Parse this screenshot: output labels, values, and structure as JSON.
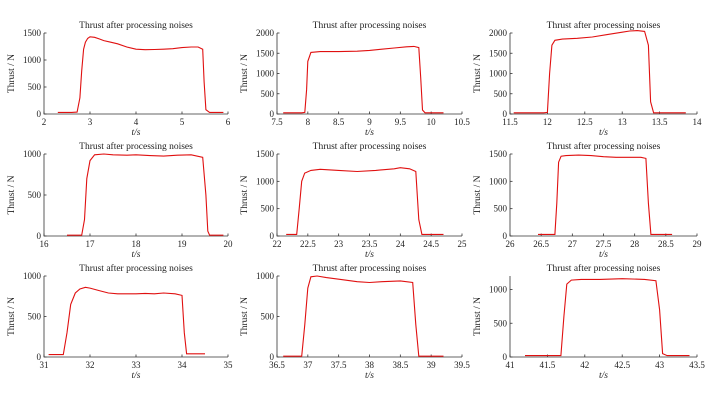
{
  "chart_data": [
    {
      "type": "line",
      "title": "Thrust after processing noises",
      "xlabel": "t/s",
      "ylabel": "Thrust / N",
      "xlim": [
        2,
        6
      ],
      "ylim": [
        0,
        1500
      ],
      "xticks": [
        2,
        3,
        4,
        5,
        6
      ],
      "xtick_labels": [
        "2",
        "3",
        "4",
        "5",
        "6"
      ],
      "yticks": [
        0,
        500,
        1000,
        1500
      ],
      "ytick_labels": [
        "0",
        "500",
        "1000",
        "1500"
      ],
      "grid": false,
      "color": "#e01010",
      "series": [
        {
          "x": [
            2.3,
            2.6,
            2.72,
            2.78,
            2.82,
            2.86,
            2.9,
            2.95,
            3.0,
            3.1,
            3.2,
            3.3,
            3.45,
            3.6,
            3.8,
            4.0,
            4.2,
            4.4,
            4.6,
            4.8,
            5.0,
            5.2,
            5.35,
            5.45,
            5.48,
            5.52,
            5.6,
            5.9
          ],
          "y": [
            30,
            30,
            35,
            300,
            800,
            1200,
            1330,
            1400,
            1430,
            1420,
            1390,
            1360,
            1330,
            1300,
            1240,
            1200,
            1190,
            1195,
            1200,
            1210,
            1230,
            1240,
            1240,
            1200,
            600,
            80,
            30,
            30
          ]
        }
      ]
    },
    {
      "type": "line",
      "title": "Thrust after processing noises",
      "xlabel": "t/s",
      "ylabel": "Thrust / N",
      "xlim": [
        7.5,
        10.5
      ],
      "ylim": [
        0,
        2000
      ],
      "xticks": [
        7.5,
        8,
        8.5,
        9,
        9.5,
        10,
        10.5
      ],
      "xtick_labels": [
        "7.5",
        "8",
        "8.5",
        "9",
        "9.5",
        "10",
        "10.5"
      ],
      "yticks": [
        0,
        500,
        1000,
        1500,
        2000
      ],
      "ytick_labels": [
        "0",
        "500",
        "1000",
        "1500",
        "2000"
      ],
      "grid": false,
      "color": "#e01010",
      "series": [
        {
          "x": [
            7.6,
            7.9,
            7.95,
            7.98,
            8.0,
            8.05,
            8.2,
            8.5,
            8.8,
            9.0,
            9.2,
            9.4,
            9.6,
            9.72,
            9.8,
            9.83,
            9.86,
            9.9,
            10.2
          ],
          "y": [
            30,
            30,
            40,
            600,
            1300,
            1520,
            1540,
            1540,
            1550,
            1570,
            1600,
            1630,
            1660,
            1670,
            1640,
            900,
            100,
            30,
            30
          ]
        }
      ]
    },
    {
      "type": "line",
      "title": "Thrust after processing noises",
      "xlabel": "t/s",
      "ylabel": "Thrust / N",
      "xlim": [
        11.5,
        14
      ],
      "ylim": [
        0,
        2000
      ],
      "xticks": [
        11.5,
        12,
        12.5,
        13,
        13.5,
        14
      ],
      "xtick_labels": [
        "11.5",
        "12",
        "12.5",
        "13",
        "13.5",
        "14"
      ],
      "yticks": [
        0,
        500,
        1000,
        1500,
        2000
      ],
      "ytick_labels": [
        "0",
        "500",
        "1000",
        "1500",
        "2000"
      ],
      "grid": false,
      "color": "#e01010",
      "series": [
        {
          "x": [
            11.55,
            11.95,
            12.0,
            12.03,
            12.06,
            12.1,
            12.2,
            12.4,
            12.6,
            12.8,
            13.0,
            13.1,
            13.2,
            13.3,
            13.35,
            13.38,
            13.42,
            13.85
          ],
          "y": [
            30,
            30,
            40,
            1000,
            1700,
            1820,
            1850,
            1870,
            1900,
            1960,
            2020,
            2050,
            2060,
            2040,
            1700,
            300,
            30,
            30
          ]
        }
      ]
    },
    {
      "type": "line",
      "title": "Thrust after processing noises",
      "xlabel": "t/s",
      "ylabel": "Thrust / N",
      "xlim": [
        16,
        20
      ],
      "ylim": [
        0,
        1000
      ],
      "xticks": [
        16,
        17,
        18,
        19,
        20
      ],
      "xtick_labels": [
        "16",
        "17",
        "18",
        "19",
        "20"
      ],
      "yticks": [
        0,
        500,
        1000
      ],
      "ytick_labels": [
        "0",
        "500",
        "1000"
      ],
      "grid": false,
      "color": "#e01010",
      "series": [
        {
          "x": [
            16.5,
            16.82,
            16.88,
            16.93,
            17.0,
            17.1,
            17.3,
            17.5,
            17.8,
            18.0,
            18.3,
            18.6,
            18.9,
            19.2,
            19.45,
            19.52,
            19.56,
            19.6,
            19.9
          ],
          "y": [
            10,
            10,
            200,
            700,
            920,
            990,
            1000,
            990,
            985,
            990,
            980,
            975,
            985,
            990,
            960,
            500,
            60,
            10,
            10
          ]
        }
      ]
    },
    {
      "type": "line",
      "title": "Thrust after processing noises",
      "xlabel": "t/s",
      "ylabel": "Thrust / N",
      "xlim": [
        22,
        25
      ],
      "ylim": [
        0,
        1500
      ],
      "xticks": [
        22,
        22.5,
        23,
        23.5,
        24,
        24.5,
        25
      ],
      "xtick_labels": [
        "22",
        "22.5",
        "23",
        "23.5",
        "24",
        "24.5",
        "25"
      ],
      "yticks": [
        0,
        500,
        1000,
        1500
      ],
      "ytick_labels": [
        "0",
        "500",
        "1000",
        "1500"
      ],
      "grid": false,
      "color": "#e01010",
      "series": [
        {
          "x": [
            22.15,
            22.32,
            22.36,
            22.4,
            22.45,
            22.55,
            22.7,
            23.0,
            23.3,
            23.6,
            23.9,
            24.0,
            24.15,
            24.25,
            24.3,
            24.35,
            24.7
          ],
          "y": [
            30,
            30,
            500,
            1000,
            1150,
            1200,
            1220,
            1200,
            1180,
            1200,
            1230,
            1250,
            1230,
            1180,
            300,
            30,
            30
          ]
        }
      ]
    },
    {
      "type": "line",
      "title": "Thrust after processing noises",
      "xlabel": "t/s",
      "ylabel": "Thrust / N",
      "xlim": [
        26,
        29
      ],
      "ylim": [
        0,
        1500
      ],
      "xticks": [
        26,
        26.5,
        27,
        27.5,
        28,
        28.5,
        29
      ],
      "xtick_labels": [
        "26",
        "26.5",
        "27",
        "27.5",
        "28",
        "28.5",
        "29"
      ],
      "yticks": [
        0,
        500,
        1000,
        1500
      ],
      "ytick_labels": [
        "0",
        "500",
        "1000",
        "1500"
      ],
      "grid": false,
      "color": "#e01010",
      "series": [
        {
          "x": [
            26.45,
            26.72,
            26.75,
            26.78,
            26.82,
            26.9,
            27.1,
            27.3,
            27.5,
            27.7,
            27.9,
            28.1,
            28.18,
            28.22,
            28.26,
            28.6
          ],
          "y": [
            30,
            30,
            600,
            1350,
            1460,
            1470,
            1480,
            1470,
            1450,
            1440,
            1440,
            1440,
            1420,
            600,
            30,
            30
          ]
        }
      ]
    },
    {
      "type": "line",
      "title": "Thrust after processing noises",
      "xlabel": "t/s",
      "ylabel": "Thrust / N",
      "xlim": [
        31,
        35
      ],
      "ylim": [
        0,
        1000
      ],
      "xticks": [
        31,
        32,
        33,
        34,
        35
      ],
      "xtick_labels": [
        "31",
        "32",
        "33",
        "34",
        "35"
      ],
      "yticks": [
        0,
        500,
        1000
      ],
      "ytick_labels": [
        "0",
        "500",
        "1000"
      ],
      "grid": false,
      "color": "#e01010",
      "series": [
        {
          "x": [
            31.1,
            31.42,
            31.5,
            31.58,
            31.68,
            31.78,
            31.9,
            32.0,
            32.2,
            32.4,
            32.6,
            32.8,
            33.0,
            33.2,
            33.4,
            33.6,
            33.85,
            34.0,
            34.05,
            34.1,
            34.5
          ],
          "y": [
            30,
            30,
            300,
            650,
            790,
            840,
            860,
            850,
            820,
            790,
            780,
            780,
            780,
            785,
            780,
            790,
            780,
            760,
            300,
            40,
            40
          ]
        }
      ]
    },
    {
      "type": "line",
      "title": "Thrust after processing noises",
      "xlabel": "t/s",
      "ylabel": "Thrust / N",
      "xlim": [
        36.5,
        39.5
      ],
      "ylim": [
        0,
        1000
      ],
      "xticks": [
        36.5,
        37,
        37.5,
        38,
        38.5,
        39,
        39.5
      ],
      "xtick_labels": [
        "36.5",
        "37",
        "37.5",
        "38",
        "38.5",
        "39",
        "39.5"
      ],
      "yticks": [
        0,
        500,
        1000
      ],
      "ytick_labels": [
        "0",
        "500",
        "1000"
      ],
      "grid": false,
      "color": "#e01010",
      "series": [
        {
          "x": [
            36.6,
            36.9,
            36.95,
            37.0,
            37.05,
            37.15,
            37.3,
            37.5,
            37.8,
            38.0,
            38.2,
            38.5,
            38.7,
            38.75,
            38.8,
            39.2
          ],
          "y": [
            10,
            10,
            400,
            850,
            990,
            1000,
            980,
            960,
            930,
            920,
            930,
            940,
            920,
            400,
            10,
            10
          ]
        }
      ]
    },
    {
      "type": "line",
      "title": "Thrust after processing noises",
      "xlabel": "t/s",
      "ylabel": "Thrust / N",
      "xlim": [
        41,
        43.5
      ],
      "ylim": [
        0,
        1200
      ],
      "xticks": [
        41,
        41.5,
        42,
        42.5,
        43,
        43.5
      ],
      "xtick_labels": [
        "41",
        "41.5",
        "42",
        "42.5",
        "43",
        "43.5"
      ],
      "yticks": [
        0,
        500,
        1000
      ],
      "ytick_labels": [
        "0",
        "500",
        "1000"
      ],
      "grid": false,
      "color": "#e01010",
      "series": [
        {
          "x": [
            41.2,
            41.68,
            41.72,
            41.76,
            41.82,
            41.95,
            42.2,
            42.5,
            42.8,
            42.95,
            43.0,
            43.04,
            43.1,
            43.4
          ],
          "y": [
            20,
            20,
            600,
            1080,
            1140,
            1150,
            1150,
            1160,
            1150,
            1130,
            700,
            50,
            20,
            20
          ]
        }
      ]
    }
  ]
}
